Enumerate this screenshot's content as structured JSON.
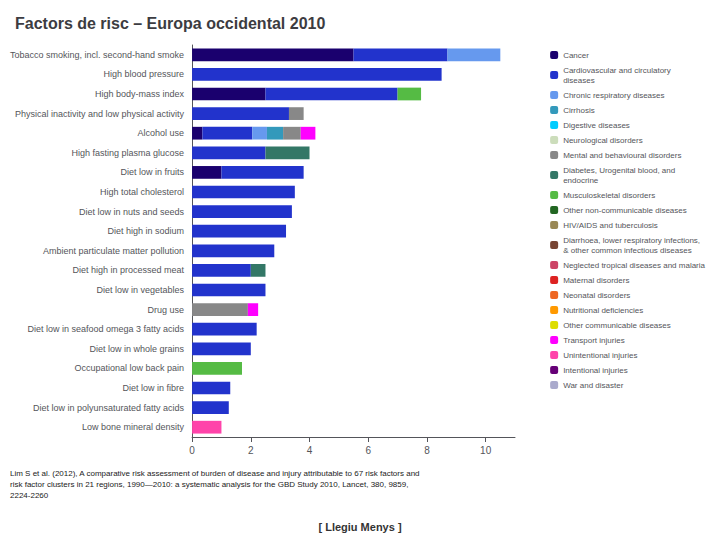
{
  "chart_data": {
    "type": "bar",
    "orientation": "horizontal",
    "stacked": true,
    "title": "Factors de risc – Europa occidental 2010",
    "categories": [
      "Tobacco smoking, incl. second-hand smoke",
      "High blood pressure",
      "High body-mass index",
      "Physical inactivity and low physical activity",
      "Alcohol use",
      "High fasting plasma glucose",
      "Diet low in fruits",
      "High total cholesterol",
      "Diet low in nuts and seeds",
      "Diet high in sodium",
      "Ambient particulate matter pollution",
      "Diet high in processed meat",
      "Diet low in vegetables",
      "Drug use",
      "Diet low in seafood omega 3 fatty acids",
      "Diet low in whole grains",
      "Occupational low back pain",
      "Diet low in fibre",
      "Diet low in polyunsaturated fatty acids",
      "Low bone mineral density"
    ],
    "series": [
      {
        "name": "Cancer",
        "color": "#1a006e",
        "values": [
          5.5,
          null,
          2.5,
          null,
          0.35,
          null,
          1.0,
          null,
          null,
          null,
          null,
          null,
          null,
          null,
          null,
          null,
          null,
          null,
          null,
          null
        ]
      },
      {
        "name": "Cardiovascular and circulatory\ndiseases",
        "color": "#2233cc",
        "values": [
          3.2,
          8.5,
          4.5,
          3.3,
          1.7,
          2.5,
          2.8,
          3.5,
          3.4,
          3.2,
          2.8,
          2.0,
          2.5,
          null,
          2.2,
          2.0,
          null,
          1.3,
          1.25,
          null
        ]
      },
      {
        "name": "Chronic respiratory diseases",
        "color": "#6699ee",
        "values": [
          1.8,
          null,
          null,
          null,
          0.5,
          null,
          null,
          null,
          null,
          null,
          null,
          null,
          null,
          null,
          null,
          null,
          null,
          null,
          null,
          null
        ]
      },
      {
        "name": "Cirrhosis",
        "color": "#3399bb",
        "values": [
          null,
          null,
          null,
          null,
          0.55,
          null,
          null,
          null,
          null,
          null,
          null,
          null,
          null,
          null,
          null,
          null,
          null,
          null,
          null,
          null
        ]
      },
      {
        "name": "Digestive diseases",
        "color": "#00ccff",
        "values": [
          null,
          null,
          null,
          null,
          null,
          null,
          null,
          null,
          null,
          null,
          null,
          null,
          null,
          null,
          null,
          null,
          null,
          null,
          null,
          null
        ]
      },
      {
        "name": "Neurological disorders",
        "color": "#ccddbb",
        "values": [
          null,
          null,
          null,
          null,
          null,
          null,
          null,
          null,
          null,
          null,
          null,
          null,
          null,
          null,
          null,
          null,
          null,
          null,
          null,
          null
        ]
      },
      {
        "name": "Mental and behavioural disorders",
        "color": "#888888",
        "values": [
          null,
          null,
          null,
          0.5,
          0.6,
          null,
          null,
          null,
          null,
          null,
          null,
          null,
          null,
          1.9,
          null,
          null,
          null,
          null,
          null,
          null
        ]
      },
      {
        "name": "Diabetes, Urogenital blood, and\nendocrine",
        "color": "#337766",
        "values": [
          null,
          null,
          null,
          null,
          null,
          1.5,
          null,
          null,
          null,
          null,
          null,
          0.5,
          null,
          null,
          null,
          null,
          null,
          null,
          null,
          null
        ]
      },
      {
        "name": "Musculoskeletal disorders",
        "color": "#55bb44",
        "values": [
          null,
          null,
          0.8,
          null,
          null,
          null,
          null,
          null,
          null,
          null,
          null,
          null,
          null,
          null,
          null,
          null,
          1.7,
          null,
          null,
          null
        ]
      },
      {
        "name": "Other non-communicable diseases",
        "color": "#226622",
        "values": [
          null,
          null,
          null,
          null,
          null,
          null,
          null,
          null,
          null,
          null,
          null,
          null,
          null,
          null,
          null,
          null,
          null,
          null,
          null,
          null
        ]
      },
      {
        "name": "HIV/AIDS and tuberculosis",
        "color": "#998855",
        "values": [
          null,
          null,
          null,
          null,
          null,
          null,
          null,
          null,
          null,
          null,
          null,
          null,
          null,
          null,
          null,
          null,
          null,
          null,
          null,
          null
        ]
      },
      {
        "name": "Diarrhoea, lower respiratory infections,\n& other common infectious diseases",
        "color": "#774433",
        "values": [
          null,
          null,
          null,
          null,
          null,
          null,
          null,
          null,
          null,
          null,
          null,
          null,
          null,
          null,
          null,
          null,
          null,
          null,
          null,
          null
        ]
      },
      {
        "name": "Neglected tropical diseases and malaria",
        "color": "#cc4466",
        "values": [
          null,
          null,
          null,
          null,
          null,
          null,
          null,
          null,
          null,
          null,
          null,
          null,
          null,
          null,
          null,
          null,
          null,
          null,
          null,
          null
        ]
      },
      {
        "name": "Maternal disorders",
        "color": "#dd2222",
        "values": [
          null,
          null,
          null,
          null,
          null,
          null,
          null,
          null,
          null,
          null,
          null,
          null,
          null,
          null,
          null,
          null,
          null,
          null,
          null,
          null
        ]
      },
      {
        "name": "Neonatal disorders",
        "color": "#ee6622",
        "values": [
          null,
          null,
          null,
          null,
          null,
          null,
          null,
          null,
          null,
          null,
          null,
          null,
          null,
          null,
          null,
          null,
          null,
          null,
          null,
          null
        ]
      },
      {
        "name": "Nutritional deficiencies",
        "color": "#ff9900",
        "values": [
          null,
          null,
          null,
          null,
          null,
          null,
          null,
          null,
          null,
          null,
          null,
          null,
          null,
          null,
          null,
          null,
          null,
          null,
          null,
          null
        ]
      },
      {
        "name": "Other communicable diseases",
        "color": "#dddd00",
        "values": [
          null,
          null,
          null,
          null,
          null,
          null,
          null,
          null,
          null,
          null,
          null,
          null,
          null,
          null,
          null,
          null,
          null,
          null,
          null,
          null
        ]
      },
      {
        "name": "Transport injuries",
        "color": "#ff00ff",
        "values": [
          null,
          null,
          null,
          null,
          0.5,
          null,
          null,
          null,
          null,
          null,
          null,
          null,
          null,
          0.35,
          null,
          null,
          null,
          null,
          null,
          null
        ]
      },
      {
        "name": "Unintentional injuries",
        "color": "#ff44aa",
        "values": [
          null,
          null,
          null,
          null,
          null,
          null,
          null,
          null,
          null,
          null,
          null,
          null,
          null,
          null,
          null,
          null,
          null,
          null,
          null,
          1.0
        ]
      },
      {
        "name": "Intentional injuries",
        "color": "#660077",
        "values": [
          null,
          null,
          null,
          null,
          null,
          null,
          null,
          null,
          null,
          null,
          null,
          null,
          null,
          null,
          null,
          null,
          null,
          null,
          null,
          null
        ]
      },
      {
        "name": "War and disaster",
        "color": "#aaaacc",
        "values": [
          null,
          null,
          null,
          null,
          null,
          null,
          null,
          null,
          null,
          null,
          null,
          null,
          null,
          null,
          null,
          null,
          null,
          null,
          null,
          null
        ]
      }
    ],
    "xlim": [
      0,
      11
    ],
    "xticks": [
      0,
      2,
      4,
      6,
      8,
      10
    ],
    "grid": false,
    "legend": "right",
    "annotations": [
      "Lim S et al. (2012), A comparative risk assessment of burden of disease and injury attributable to 67 risk factors and\nrisk factor clusters in 21 regions, 1990—2010: a systematic analysis for the GBD Study 2010, Lancet, 380, 9859,\n2224-2260",
      "[ Llegiu Menys ]"
    ]
  }
}
